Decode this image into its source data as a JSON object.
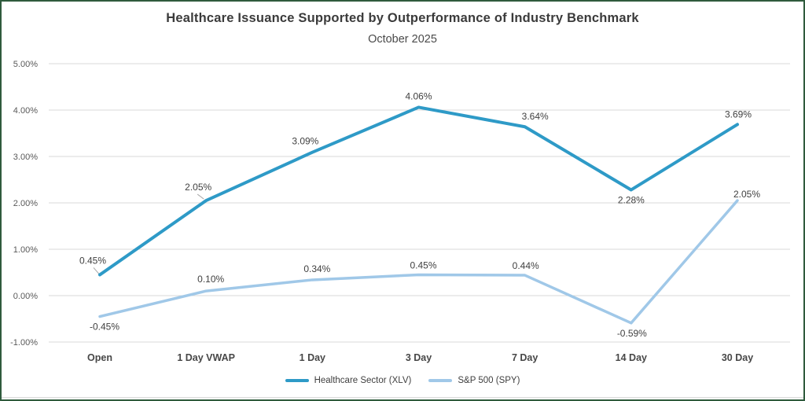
{
  "window": {
    "border_color": "#2F5B3D"
  },
  "chart_data": {
    "type": "line",
    "title": "Healthcare Issuance Supported by Outperformance of Industry Benchmark",
    "subtitle": "October 2025",
    "categories": [
      "Open",
      "1 Day VWAP",
      "1 Day",
      "3 Day",
      "7 Day",
      "14 Day",
      "30 Day"
    ],
    "series": [
      {
        "name": "Healthcare Sector (XLV)",
        "key": "xlv",
        "color": "#2E9AC7",
        "values": [
          0.45,
          2.05,
          3.09,
          4.06,
          3.64,
          2.28,
          3.69
        ],
        "labels": [
          "0.45%",
          "2.05%",
          "3.09%",
          "4.06%",
          "3.64%",
          "2.28%",
          "3.69%"
        ]
      },
      {
        "name": "S&P 500 (SPY)",
        "key": "spy",
        "color": "#A0C8E8",
        "values": [
          -0.45,
          0.1,
          0.34,
          0.45,
          0.44,
          -0.59,
          2.05
        ],
        "labels": [
          "-0.45%",
          "0.10%",
          "0.34%",
          "0.45%",
          "0.44%",
          "-0.59%",
          "2.05%"
        ]
      }
    ],
    "y_axis": {
      "tick_labels": [
        "5.00%",
        "4.00%",
        "3.00%",
        "2.00%",
        "1.00%",
        "0.00%",
        "-1.00%"
      ],
      "tick_values": [
        5,
        4,
        3,
        2,
        1,
        0,
        -1
      ],
      "min": -1,
      "max": 5
    },
    "grid": true,
    "legend_position": "bottom",
    "colors": {
      "gridline": "#D9D9D9",
      "axis_label": "#595959",
      "category_label": "#474747",
      "data_label": "#404040",
      "leader_line": "#A6A6A6"
    }
  }
}
